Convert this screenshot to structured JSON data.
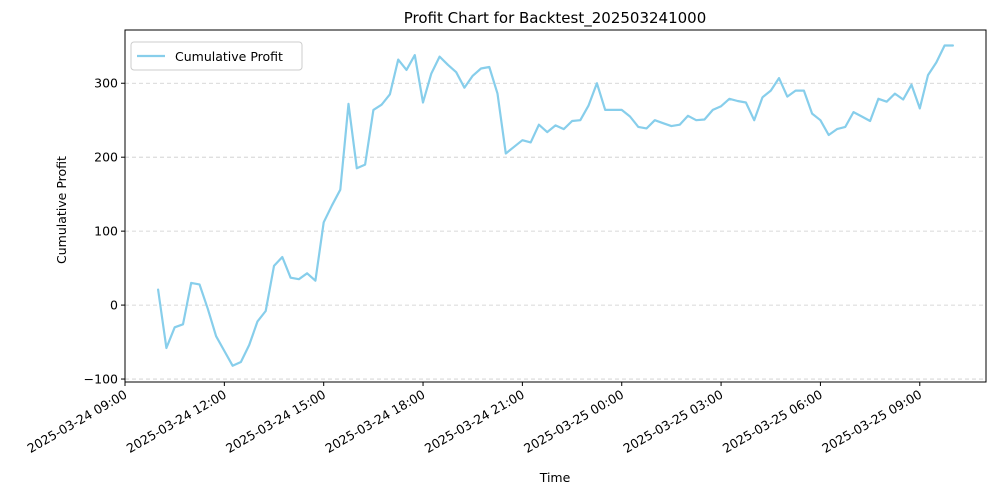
{
  "chart_data": {
    "type": "line",
    "title": "Profit Chart for Backtest_202503241000",
    "xlabel": "Time",
    "ylabel": "Cumulative Profit",
    "grid": "y-dashed",
    "legend_position": "top-left",
    "x_tick_labels": [
      "2025-03-24 09:00",
      "2025-03-24 12:00",
      "2025-03-24 15:00",
      "2025-03-24 18:00",
      "2025-03-24 21:00",
      "2025-03-25 00:00",
      "2025-03-25 03:00",
      "2025-03-25 06:00",
      "2025-03-25 09:00"
    ],
    "y_ticks": [
      -100,
      0,
      100,
      200,
      300
    ],
    "xlim": [
      "2025-03-24 09:00",
      "2025-03-25 11:00"
    ],
    "ylim": [
      -104,
      372
    ],
    "colors": {
      "line": "#87CEEB",
      "grid": "#cccccc"
    },
    "series": [
      {
        "name": "Cumulative Profit",
        "x": [
          "2025-03-24 10:00",
          "2025-03-24 10:15",
          "2025-03-24 10:30",
          "2025-03-24 10:45",
          "2025-03-24 11:00",
          "2025-03-24 11:15",
          "2025-03-24 11:30",
          "2025-03-24 11:45",
          "2025-03-24 12:00",
          "2025-03-24 12:15",
          "2025-03-24 12:30",
          "2025-03-24 12:45",
          "2025-03-24 13:00",
          "2025-03-24 13:15",
          "2025-03-24 13:30",
          "2025-03-24 13:45",
          "2025-03-24 14:00",
          "2025-03-24 14:15",
          "2025-03-24 14:30",
          "2025-03-24 14:45",
          "2025-03-24 15:00",
          "2025-03-24 15:15",
          "2025-03-24 15:30",
          "2025-03-24 15:45",
          "2025-03-24 16:00",
          "2025-03-24 16:15",
          "2025-03-24 16:30",
          "2025-03-24 16:45",
          "2025-03-24 17:00",
          "2025-03-24 17:15",
          "2025-03-24 17:30",
          "2025-03-24 17:45",
          "2025-03-24 18:00",
          "2025-03-24 18:15",
          "2025-03-24 18:30",
          "2025-03-24 18:45",
          "2025-03-24 19:00",
          "2025-03-24 19:15",
          "2025-03-24 19:30",
          "2025-03-24 19:45",
          "2025-03-24 20:00",
          "2025-03-24 20:15",
          "2025-03-24 20:30",
          "2025-03-24 20:45",
          "2025-03-24 21:00",
          "2025-03-24 21:15",
          "2025-03-24 21:30",
          "2025-03-24 21:45",
          "2025-03-24 22:00",
          "2025-03-24 22:15",
          "2025-03-24 22:30",
          "2025-03-24 22:45",
          "2025-03-24 23:00",
          "2025-03-24 23:15",
          "2025-03-24 23:30",
          "2025-03-24 23:45",
          "2025-03-25 00:00",
          "2025-03-25 00:15",
          "2025-03-25 00:30",
          "2025-03-25 00:45",
          "2025-03-25 01:00",
          "2025-03-25 01:15",
          "2025-03-25 01:30",
          "2025-03-25 01:45",
          "2025-03-25 02:00",
          "2025-03-25 02:15",
          "2025-03-25 02:30",
          "2025-03-25 02:45",
          "2025-03-25 03:00",
          "2025-03-25 03:15",
          "2025-03-25 03:30",
          "2025-03-25 03:45",
          "2025-03-25 04:00",
          "2025-03-25 04:15",
          "2025-03-25 04:30",
          "2025-03-25 04:45",
          "2025-03-25 05:00",
          "2025-03-25 05:15",
          "2025-03-25 05:30",
          "2025-03-25 05:45",
          "2025-03-25 06:00",
          "2025-03-25 06:15",
          "2025-03-25 06:30",
          "2025-03-25 06:45",
          "2025-03-25 07:00",
          "2025-03-25 07:15",
          "2025-03-25 07:30",
          "2025-03-25 07:45",
          "2025-03-25 08:00",
          "2025-03-25 08:15",
          "2025-03-25 08:30",
          "2025-03-25 08:45",
          "2025-03-25 09:00",
          "2025-03-25 09:15",
          "2025-03-25 09:30",
          "2025-03-25 09:45",
          "2025-03-25 10:00"
        ],
        "y": [
          21,
          -58,
          -30,
          -26,
          30,
          28,
          -5,
          -42,
          -62,
          -82,
          -77,
          -54,
          -22,
          -8,
          53,
          65,
          37,
          35,
          43,
          33,
          112,
          135,
          156,
          272,
          185,
          190,
          264,
          271,
          285,
          332,
          318,
          338,
          274,
          313,
          336,
          325,
          315,
          294,
          310,
          320,
          322,
          286,
          205,
          214,
          223,
          220,
          244,
          234,
          243,
          238,
          249,
          250,
          270,
          300,
          264,
          264,
          264,
          255,
          241,
          239,
          250,
          246,
          242,
          244,
          256,
          250,
          251,
          264,
          269,
          279,
          276,
          274,
          250,
          281,
          290,
          307,
          282,
          290,
          290,
          259,
          250,
          230,
          238,
          241,
          261,
          255,
          249,
          279,
          275,
          286,
          278,
          298,
          266,
          311,
          328,
          351,
          351
        ]
      }
    ]
  }
}
